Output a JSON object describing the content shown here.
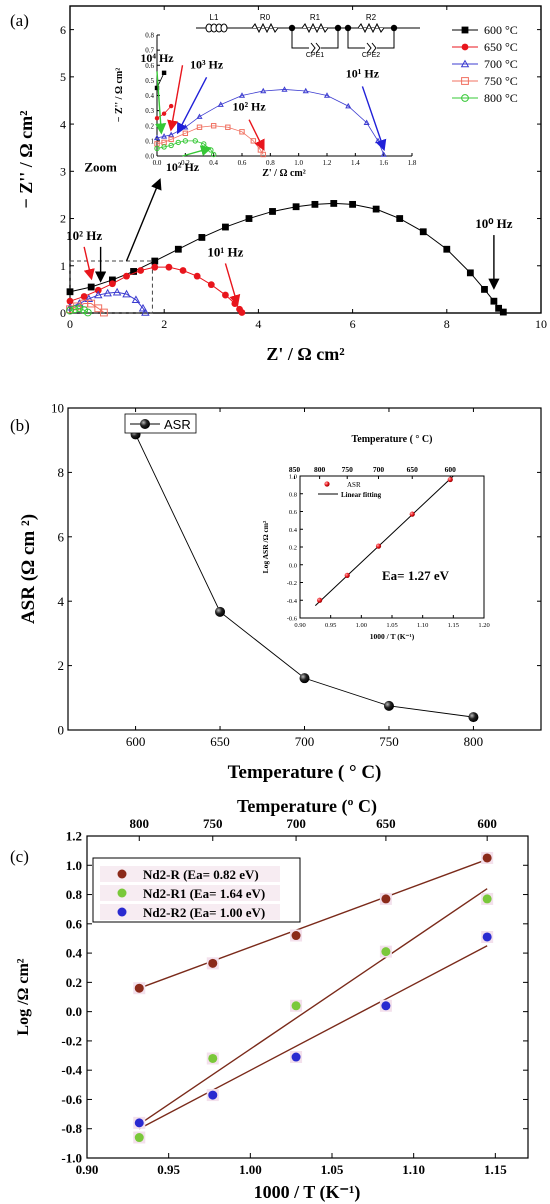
{
  "chart_data": [
    {
      "panel": "(a)",
      "type": "scatter",
      "xlabel": "Z' / Ω cm²",
      "ylabel": "− Z'' / Ω cm²",
      "xlim": [
        0,
        10
      ],
      "ylim": [
        0,
        6.5
      ],
      "xticks": [
        "0",
        "2",
        "4",
        "6",
        "8",
        "10"
      ],
      "yticks": [
        "0",
        "1",
        "2",
        "3",
        "4",
        "5",
        "6"
      ],
      "legend_position": "top-right",
      "series": [
        {
          "name": "600 °C",
          "color": "#000000",
          "marker": "square-filled",
          "x": [
            0,
            0.45,
            0.9,
            1.35,
            1.8,
            2.3,
            2.8,
            3.3,
            3.8,
            4.3,
            4.8,
            5.2,
            5.6,
            6.0,
            6.5,
            7.0,
            7.5,
            8.0,
            8.5,
            8.8,
            9.0,
            9.1,
            9.2
          ],
          "y": [
            0.45,
            0.55,
            0.7,
            0.88,
            1.1,
            1.35,
            1.6,
            1.82,
            2.0,
            2.15,
            2.25,
            2.3,
            2.32,
            2.3,
            2.2,
            2.0,
            1.72,
            1.35,
            0.85,
            0.5,
            0.25,
            0.1,
            0.02
          ]
        },
        {
          "name": "650 °C",
          "color": "#e8151c",
          "marker": "circle-filled",
          "x": [
            0,
            0.3,
            0.6,
            0.9,
            1.2,
            1.5,
            1.8,
            2.1,
            2.4,
            2.7,
            3.0,
            3.3,
            3.5,
            3.6,
            3.65
          ],
          "y": [
            0.25,
            0.35,
            0.48,
            0.62,
            0.78,
            0.9,
            0.97,
            0.97,
            0.9,
            0.78,
            0.6,
            0.38,
            0.2,
            0.08,
            0.01
          ]
        },
        {
          "name": "700 °C",
          "color": "#3c3cd0",
          "marker": "triangle-open",
          "x": [
            0,
            0.2,
            0.4,
            0.6,
            0.8,
            1.0,
            1.2,
            1.4,
            1.55,
            1.6
          ],
          "y": [
            0.12,
            0.2,
            0.3,
            0.38,
            0.42,
            0.44,
            0.4,
            0.28,
            0.1,
            0.01
          ]
        },
        {
          "name": "750 °C",
          "color": "#f07060",
          "marker": "square-open",
          "x": [
            0,
            0.15,
            0.3,
            0.45,
            0.6,
            0.72
          ],
          "y": [
            0.08,
            0.14,
            0.2,
            0.2,
            0.1,
            0.01
          ]
        },
        {
          "name": "800 °C",
          "color": "#36c836",
          "marker": "circle-open",
          "x": [
            0,
            0.1,
            0.2,
            0.3,
            0.38
          ],
          "y": [
            0.05,
            0.08,
            0.1,
            0.06,
            0.01
          ]
        }
      ],
      "annotations": [
        {
          "text": "10² Hz",
          "x": 0.3,
          "y": 1.55,
          "arrow_color": "#e8151c",
          "ax": 0.45,
          "ay": 0.75
        },
        {
          "text": "10¹ Hz",
          "x": 3.3,
          "y": 1.2,
          "arrow_color": "#e8151c",
          "ax": 3.55,
          "ay": 0.2
        },
        {
          "text": "10⁰ Hz",
          "x": 9.0,
          "y": 1.8,
          "arrow_color": "#000000",
          "ax": 9.0,
          "ay": 0.55
        },
        {
          "text": "Zoom",
          "x": 0.65,
          "y": 3.0,
          "arrow_color": "#000000",
          "ax": 1.9,
          "ay": 2.8,
          "from_x": 1.2,
          "from_y": 1.1
        }
      ],
      "down_arrow_black_x": 0.65,
      "zoom_box": {
        "x0": 0,
        "x1": 1.75,
        "y0": 0,
        "y1": 1.1
      },
      "circuit": {
        "labels": [
          "L1",
          "R0",
          "R1",
          "R2",
          "CPE1",
          "CPE2"
        ]
      },
      "inset": {
        "type": "scatter",
        "xlabel": "Z' / Ω cm²",
        "ylabel": "− Z'' / Ω cm²",
        "xlim": [
          0,
          1.8
        ],
        "ylim": [
          0,
          0.8
        ],
        "xticks": [
          "0.0",
          "0.2",
          "0.4",
          "0.6",
          "0.8",
          "1.0",
          "1.2",
          "1.4",
          "1.6",
          "1.8"
        ],
        "yticks": [
          "0.0",
          "0.1",
          "0.2",
          "0.3",
          "0.4",
          "0.5",
          "0.6",
          "0.7",
          "0.8"
        ],
        "series": [
          {
            "name": "700 °C",
            "x": [
              0,
              0.05,
              0.1,
              0.2,
              0.3,
              0.45,
              0.6,
              0.75,
              0.9,
              1.05,
              1.2,
              1.35,
              1.48,
              1.56,
              1.6
            ],
            "y": [
              0.12,
              0.13,
              0.14,
              0.19,
              0.26,
              0.34,
              0.4,
              0.43,
              0.44,
              0.43,
              0.4,
              0.33,
              0.22,
              0.1,
              0.01
            ]
          },
          {
            "name": "750 °C",
            "x": [
              0,
              0.05,
              0.1,
              0.2,
              0.3,
              0.4,
              0.5,
              0.6,
              0.68,
              0.73,
              0.75
            ],
            "y": [
              0.08,
              0.09,
              0.11,
              0.15,
              0.19,
              0.2,
              0.19,
              0.16,
              0.1,
              0.04,
              0.01
            ]
          },
          {
            "name": "800 °C",
            "x": [
              0,
              0.05,
              0.1,
              0.15,
              0.2,
              0.27,
              0.33,
              0.38,
              0.4
            ],
            "y": [
              0.05,
              0.06,
              0.07,
              0.09,
              0.1,
              0.1,
              0.08,
              0.04,
              0.01
            ]
          },
          {
            "name": "650 °C",
            "x": [
              0,
              0.05,
              0.1
            ],
            "y": [
              0.25,
              0.28,
              0.33
            ]
          },
          {
            "name": "600 °C",
            "x": [
              0,
              0.05
            ],
            "y": [
              0.45,
              0.55
            ]
          }
        ],
        "annotations": [
          {
            "text": "10⁴ Hz",
            "x": 0.0,
            "y": 0.62,
            "arrow_color": "#36c836",
            "ax": 0.03,
            "ay": 0.16
          },
          {
            "text": "10³ Hz",
            "x": 0.35,
            "y": 0.58,
            "arrow_color": "#2020d8",
            "ax": 0.15,
            "ay": 0.16
          },
          {
            "text": "10² Hz",
            "x": 0.65,
            "y": 0.3,
            "arrow_color": "#e8151c",
            "ax": 0.75,
            "ay": 0.05
          },
          {
            "text": "10¹ Hz",
            "x": 1.45,
            "y": 0.52,
            "arrow_color": "#2020d8",
            "ax": 1.6,
            "ay": 0.05
          },
          {
            "text": "10² Hz",
            "x": 0.18,
            "y": -0.1,
            "arrow_color": "#36c836",
            "ax": 0.37,
            "ay": 0.05
          }
        ],
        "red_arrow_x": 0.18
      }
    },
    {
      "panel": "(b)",
      "type": "line",
      "xlabel": "Temperature ( ° C)",
      "ylabel": "ASR (Ω cm ²)",
      "xlim": [
        560,
        840
      ],
      "ylim": [
        0,
        10
      ],
      "xticks": [
        "600",
        "650",
        "700",
        "750",
        "800"
      ],
      "yticks": [
        "0",
        "2",
        "4",
        "6",
        "8",
        "10"
      ],
      "legend_position": "top-left",
      "series": [
        {
          "name": "ASR",
          "x": [
            600,
            650,
            700,
            750,
            800
          ],
          "y": [
            9.18,
            3.67,
            1.61,
            0.75,
            0.4
          ]
        }
      ],
      "inset": {
        "type": "scatter",
        "xlabel": "1000 / T (K⁻¹)",
        "ylabel": "Log ASR /Ω cm²",
        "top_xlabel": "Temperature ( ° C)",
        "xlim": [
          0.9,
          1.2
        ],
        "ylim": [
          -0.6,
          1.0
        ],
        "xticks": [
          "0.90",
          "0.95",
          "1.00",
          "1.05",
          "1.10",
          "1.15",
          "1.20"
        ],
        "yticks": [
          "-0.6",
          "-0.4",
          "-0.2",
          "0.0",
          "0.2",
          "0.4",
          "0.6",
          "0.8",
          "1.0"
        ],
        "top_ticks": [
          {
            "label": "850",
            "x": 0.891
          },
          {
            "label": "800",
            "x": 0.932
          },
          {
            "label": "750",
            "x": 0.977
          },
          {
            "label": "700",
            "x": 1.028
          },
          {
            "label": "650",
            "x": 1.083
          },
          {
            "label": "600",
            "x": 1.145
          }
        ],
        "series": [
          {
            "name": "ASR",
            "x": [
              0.932,
              0.977,
              1.028,
              1.083,
              1.145
            ],
            "y": [
              -0.4,
              -0.12,
              0.21,
              0.57,
              0.96
            ]
          }
        ],
        "fit": {
          "name": "Linear fitting",
          "x": [
            0.925,
            1.15
          ],
          "y": [
            -0.46,
            1.0
          ]
        },
        "annotation": "Ea= 1.27 eV"
      }
    },
    {
      "panel": "(c)",
      "type": "scatter",
      "xlabel": "1000 / T (K⁻¹)",
      "ylabel": "Log /Ω cm²",
      "top_xlabel": "Temperature (º C)",
      "xlim": [
        0.9,
        1.17
      ],
      "ylim": [
        -1.0,
        1.2
      ],
      "xticks": [
        "0.90",
        "0.95",
        "1.00",
        "1.05",
        "1.10",
        "1.15"
      ],
      "yticks": [
        "-1.0",
        "-0.8",
        "-0.6",
        "-0.4",
        "-0.2",
        "0.0",
        "0.2",
        "0.4",
        "0.6",
        "0.8",
        "1.0",
        "1.2"
      ],
      "top_ticks": [
        {
          "label": "800",
          "x": 0.932
        },
        {
          "label": "750",
          "x": 0.977
        },
        {
          "label": "700",
          "x": 1.028
        },
        {
          "label": "650",
          "x": 1.083
        },
        {
          "label": "600",
          "x": 1.145
        }
      ],
      "legend_position": "top-left",
      "series": [
        {
          "name": "Nd2-R (Ea= 0.82 eV)",
          "color": "#8b2a1a",
          "x": [
            0.932,
            0.977,
            1.028,
            1.083,
            1.145
          ],
          "y": [
            0.16,
            0.33,
            0.52,
            0.77,
            1.05
          ],
          "fit": {
            "x": [
              0.932,
              1.145
            ],
            "y": [
              0.16,
              1.04
            ]
          }
        },
        {
          "name": "Nd2-R1 (Ea= 1.64 eV)",
          "color": "#7ac83a",
          "x": [
            0.932,
            0.977,
            1.028,
            1.083,
            1.145
          ],
          "y": [
            -0.86,
            -0.32,
            0.04,
            0.41,
            0.77
          ],
          "fit": {
            "x": [
              0.932,
              1.145
            ],
            "y": [
              -0.77,
              0.84
            ]
          }
        },
        {
          "name": "Nd2-R2 (Ea= 1.00 eV)",
          "color": "#2a2ad0",
          "x": [
            0.932,
            0.977,
            1.028,
            1.083,
            1.145
          ],
          "y": [
            -0.76,
            -0.57,
            -0.31,
            0.04,
            0.51
          ],
          "fit": {
            "x": [
              0.932,
              1.145
            ],
            "y": [
              -0.8,
              0.45
            ]
          }
        }
      ]
    }
  ]
}
